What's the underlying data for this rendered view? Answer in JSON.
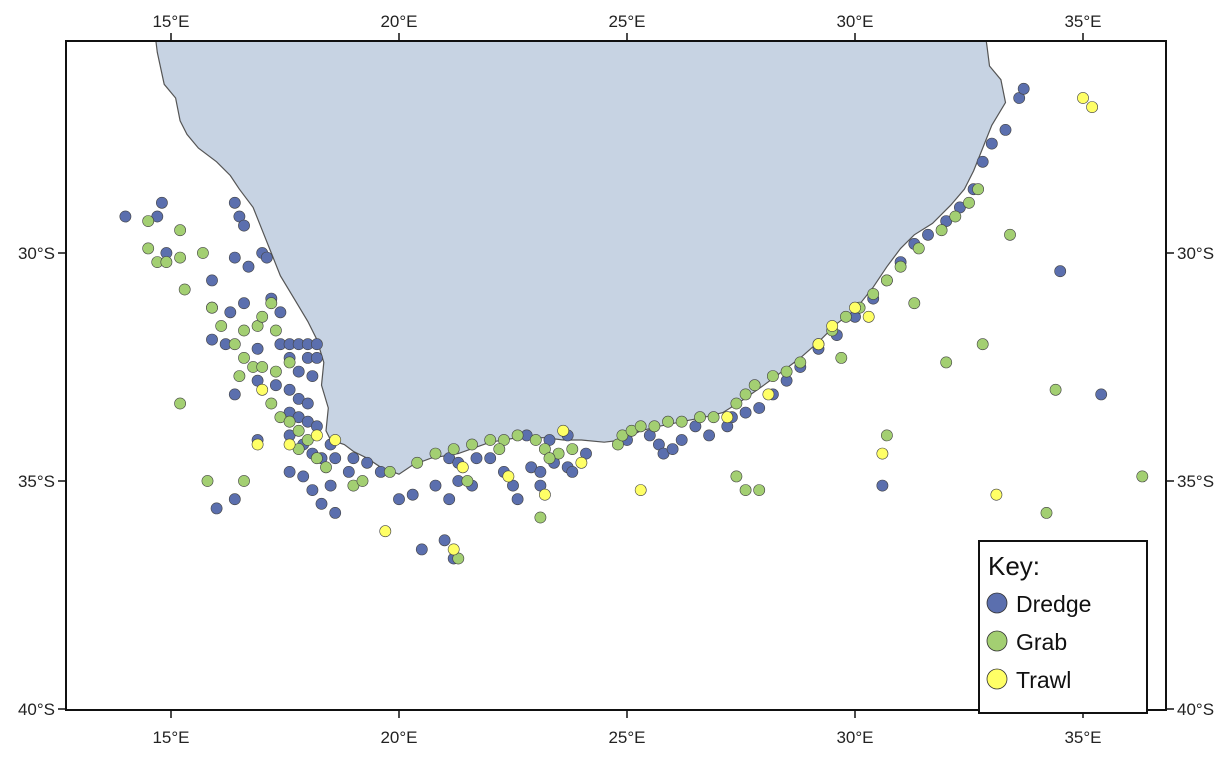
{
  "map": {
    "projection": "equirectangular",
    "lon_range": [
      12.8,
      36.6
    ],
    "lat_range": [
      -40.0,
      -24.8
    ],
    "x_ticks": [
      {
        "lon": 15,
        "label": "15°E"
      },
      {
        "lon": 20,
        "label": "20°E"
      },
      {
        "lon": 25,
        "label": "25°E"
      },
      {
        "lon": 30,
        "label": "30°E"
      },
      {
        "lon": 35,
        "label": "35°E"
      }
    ],
    "y_ticks": [
      {
        "lat": -30,
        "label": "30°S"
      },
      {
        "lat": -35,
        "label": "35°S"
      },
      {
        "lat": -40,
        "label": "40°S"
      }
    ],
    "land_color": "#c7d3e3",
    "coast_color": "#555555",
    "coastline": [
      [
        14.6,
        -24.8
      ],
      [
        14.7,
        -25.6
      ],
      [
        14.85,
        -26.3
      ],
      [
        15.1,
        -26.6
      ],
      [
        15.2,
        -27.1
      ],
      [
        15.35,
        -27.4
      ],
      [
        15.6,
        -27.7
      ],
      [
        16.0,
        -28.0
      ],
      [
        16.3,
        -28.3
      ],
      [
        16.5,
        -28.6
      ],
      [
        16.8,
        -29.0
      ],
      [
        17.0,
        -29.5
      ],
      [
        17.2,
        -30.0
      ],
      [
        17.4,
        -30.5
      ],
      [
        17.7,
        -31.0
      ],
      [
        18.0,
        -31.5
      ],
      [
        18.2,
        -31.9
      ],
      [
        18.35,
        -32.4
      ],
      [
        18.3,
        -32.9
      ],
      [
        18.45,
        -33.4
      ],
      [
        18.4,
        -33.9
      ],
      [
        18.5,
        -34.1
      ],
      [
        18.8,
        -34.2
      ],
      [
        19.0,
        -34.35
      ],
      [
        19.3,
        -34.5
      ],
      [
        19.6,
        -34.7
      ],
      [
        20.0,
        -34.85
      ],
      [
        20.3,
        -34.65
      ],
      [
        20.7,
        -34.5
      ],
      [
        21.3,
        -34.4
      ],
      [
        22.0,
        -34.15
      ],
      [
        22.6,
        -34.05
      ],
      [
        23.2,
        -34.05
      ],
      [
        23.6,
        -34.1
      ],
      [
        24.0,
        -34.1
      ],
      [
        24.5,
        -34.15
      ],
      [
        24.9,
        -34.1
      ],
      [
        25.3,
        -33.9
      ],
      [
        25.7,
        -33.8
      ],
      [
        26.2,
        -33.7
      ],
      [
        26.7,
        -33.6
      ],
      [
        27.1,
        -33.5
      ],
      [
        27.5,
        -33.25
      ],
      [
        28.0,
        -32.9
      ],
      [
        28.4,
        -32.6
      ],
      [
        28.8,
        -32.3
      ],
      [
        29.2,
        -31.95
      ],
      [
        29.6,
        -31.55
      ],
      [
        30.0,
        -31.25
      ],
      [
        30.4,
        -30.75
      ],
      [
        30.7,
        -30.3
      ],
      [
        31.0,
        -29.9
      ],
      [
        31.3,
        -29.6
      ],
      [
        31.7,
        -29.35
      ],
      [
        32.1,
        -28.95
      ],
      [
        32.4,
        -28.6
      ],
      [
        32.6,
        -28.2
      ],
      [
        32.8,
        -27.7
      ],
      [
        33.0,
        -27.2
      ],
      [
        33.3,
        -26.7
      ],
      [
        33.2,
        -26.2
      ],
      [
        32.95,
        -25.9
      ],
      [
        32.9,
        -25.5
      ],
      [
        32.8,
        -24.8
      ]
    ]
  },
  "legend": {
    "title": "Key:",
    "items": [
      {
        "label": "Dredge",
        "color": "#5b6fae"
      },
      {
        "label": "Grab",
        "color": "#a3cf72"
      },
      {
        "label": "Trawl",
        "color": "#ffff66"
      }
    ]
  },
  "points": {
    "dredge": [
      [
        14.0,
        -29.2
      ],
      [
        14.7,
        -29.2
      ],
      [
        14.8,
        -28.9
      ],
      [
        14.9,
        -30.0
      ],
      [
        16.4,
        -28.9
      ],
      [
        16.5,
        -29.2
      ],
      [
        16.6,
        -29.4
      ],
      [
        16.4,
        -30.1
      ],
      [
        16.7,
        -30.3
      ],
      [
        17.0,
        -30.0
      ],
      [
        17.1,
        -30.1
      ],
      [
        15.9,
        -30.6
      ],
      [
        16.6,
        -31.1
      ],
      [
        15.9,
        -31.2
      ],
      [
        17.2,
        -31.0
      ],
      [
        17.4,
        -31.3
      ],
      [
        16.3,
        -31.3
      ],
      [
        15.9,
        -31.9
      ],
      [
        16.2,
        -32.0
      ],
      [
        16.9,
        -32.1
      ],
      [
        17.4,
        -32.0
      ],
      [
        17.6,
        -32.0
      ],
      [
        17.8,
        -32.0
      ],
      [
        18.0,
        -32.0
      ],
      [
        18.2,
        -32.0
      ],
      [
        17.6,
        -32.3
      ],
      [
        18.0,
        -32.3
      ],
      [
        18.2,
        -32.3
      ],
      [
        17.8,
        -32.6
      ],
      [
        18.1,
        -32.7
      ],
      [
        16.9,
        -32.8
      ],
      [
        17.3,
        -32.9
      ],
      [
        17.6,
        -33.0
      ],
      [
        17.8,
        -33.2
      ],
      [
        18.0,
        -33.3
      ],
      [
        16.4,
        -33.1
      ],
      [
        17.6,
        -33.5
      ],
      [
        17.8,
        -33.6
      ],
      [
        18.0,
        -33.7
      ],
      [
        18.2,
        -33.8
      ],
      [
        16.9,
        -34.1
      ],
      [
        17.6,
        -34.0
      ],
      [
        17.9,
        -34.2
      ],
      [
        18.1,
        -34.4
      ],
      [
        18.3,
        -34.5
      ],
      [
        18.5,
        -34.2
      ],
      [
        18.6,
        -34.5
      ],
      [
        17.6,
        -34.8
      ],
      [
        17.9,
        -34.9
      ],
      [
        18.1,
        -35.2
      ],
      [
        18.5,
        -35.1
      ],
      [
        18.9,
        -34.8
      ],
      [
        16.4,
        -35.4
      ],
      [
        16.0,
        -35.6
      ],
      [
        18.3,
        -35.5
      ],
      [
        18.6,
        -35.7
      ],
      [
        19.0,
        -34.5
      ],
      [
        19.3,
        -34.6
      ],
      [
        19.6,
        -34.8
      ],
      [
        20.0,
        -35.4
      ],
      [
        20.3,
        -35.3
      ],
      [
        20.8,
        -35.1
      ],
      [
        21.3,
        -35.0
      ],
      [
        21.1,
        -35.4
      ],
      [
        21.6,
        -35.1
      ],
      [
        22.0,
        -34.5
      ],
      [
        22.3,
        -34.8
      ],
      [
        22.5,
        -35.1
      ],
      [
        22.6,
        -35.4
      ],
      [
        22.9,
        -34.7
      ],
      [
        23.1,
        -34.8
      ],
      [
        23.4,
        -34.6
      ],
      [
        23.7,
        -34.7
      ],
      [
        23.8,
        -34.8
      ],
      [
        24.1,
        -34.4
      ],
      [
        23.1,
        -35.1
      ],
      [
        20.5,
        -36.5
      ],
      [
        21.0,
        -36.3
      ],
      [
        21.2,
        -36.7
      ],
      [
        21.1,
        -34.5
      ],
      [
        21.3,
        -34.6
      ],
      [
        21.7,
        -34.5
      ],
      [
        22.8,
        -34.0
      ],
      [
        23.3,
        -34.1
      ],
      [
        23.7,
        -34.0
      ],
      [
        25.0,
        -34.1
      ],
      [
        25.5,
        -34.0
      ],
      [
        25.7,
        -34.2
      ],
      [
        25.8,
        -34.4
      ],
      [
        26.0,
        -34.3
      ],
      [
        26.2,
        -34.1
      ],
      [
        26.5,
        -33.8
      ],
      [
        26.8,
        -34.0
      ],
      [
        27.2,
        -33.8
      ],
      [
        27.6,
        -33.5
      ],
      [
        27.9,
        -33.4
      ],
      [
        28.2,
        -33.1
      ],
      [
        28.5,
        -32.8
      ],
      [
        28.8,
        -32.5
      ],
      [
        29.2,
        -32.1
      ],
      [
        29.6,
        -31.8
      ],
      [
        30.0,
        -31.4
      ],
      [
        30.4,
        -31.0
      ],
      [
        30.7,
        -30.6
      ],
      [
        31.0,
        -30.2
      ],
      [
        31.3,
        -29.8
      ],
      [
        31.6,
        -29.6
      ],
      [
        32.0,
        -29.3
      ],
      [
        32.3,
        -29.0
      ],
      [
        32.6,
        -28.6
      ],
      [
        32.8,
        -28.0
      ],
      [
        33.0,
        -27.6
      ],
      [
        33.3,
        -27.3
      ],
      [
        33.6,
        -26.6
      ],
      [
        33.7,
        -26.4
      ],
      [
        34.5,
        -30.4
      ],
      [
        35.4,
        -33.1
      ],
      [
        30.6,
        -35.1
      ],
      [
        27.3,
        -33.6
      ]
    ],
    "grab": [
      [
        14.5,
        -29.3
      ],
      [
        14.5,
        -29.9
      ],
      [
        14.7,
        -30.2
      ],
      [
        14.9,
        -30.2
      ],
      [
        15.2,
        -29.5
      ],
      [
        15.2,
        -30.1
      ],
      [
        15.7,
        -30.0
      ],
      [
        15.3,
        -30.8
      ],
      [
        15.9,
        -31.2
      ],
      [
        16.1,
        -31.6
      ],
      [
        16.6,
        -31.7
      ],
      [
        16.9,
        -31.6
      ],
      [
        17.0,
        -31.4
      ],
      [
        17.2,
        -31.1
      ],
      [
        17.3,
        -31.7
      ],
      [
        16.4,
        -32.0
      ],
      [
        16.6,
        -32.3
      ],
      [
        16.8,
        -32.5
      ],
      [
        16.5,
        -32.7
      ],
      [
        17.0,
        -32.5
      ],
      [
        17.3,
        -32.6
      ],
      [
        17.6,
        -32.4
      ],
      [
        17.2,
        -33.3
      ],
      [
        17.4,
        -33.6
      ],
      [
        17.6,
        -33.7
      ],
      [
        17.8,
        -33.9
      ],
      [
        18.0,
        -34.1
      ],
      [
        17.8,
        -34.3
      ],
      [
        18.2,
        -34.5
      ],
      [
        18.4,
        -34.7
      ],
      [
        15.2,
        -33.3
      ],
      [
        15.8,
        -35.0
      ],
      [
        16.6,
        -35.0
      ],
      [
        19.0,
        -35.1
      ],
      [
        19.8,
        -34.8
      ],
      [
        20.4,
        -34.6
      ],
      [
        20.8,
        -34.4
      ],
      [
        21.2,
        -34.3
      ],
      [
        21.6,
        -34.2
      ],
      [
        22.0,
        -34.1
      ],
      [
        22.3,
        -34.1
      ],
      [
        22.6,
        -34.0
      ],
      [
        23.0,
        -34.1
      ],
      [
        23.2,
        -34.3
      ],
      [
        23.5,
        -34.4
      ],
      [
        23.8,
        -34.3
      ],
      [
        24.8,
        -34.2
      ],
      [
        24.9,
        -34.0
      ],
      [
        25.1,
        -33.9
      ],
      [
        25.3,
        -33.8
      ],
      [
        25.6,
        -33.8
      ],
      [
        25.9,
        -33.7
      ],
      [
        26.2,
        -33.7
      ],
      [
        26.6,
        -33.6
      ],
      [
        26.9,
        -33.6
      ],
      [
        27.4,
        -33.3
      ],
      [
        27.6,
        -33.1
      ],
      [
        27.8,
        -32.9
      ],
      [
        28.2,
        -32.7
      ],
      [
        28.5,
        -32.6
      ],
      [
        28.8,
        -32.4
      ],
      [
        29.2,
        -32.0
      ],
      [
        29.5,
        -31.7
      ],
      [
        29.8,
        -31.4
      ],
      [
        30.1,
        -31.2
      ],
      [
        30.4,
        -30.9
      ],
      [
        30.7,
        -30.6
      ],
      [
        31.0,
        -30.3
      ],
      [
        31.4,
        -29.9
      ],
      [
        31.9,
        -29.5
      ],
      [
        32.2,
        -29.2
      ],
      [
        32.5,
        -28.9
      ],
      [
        32.7,
        -28.6
      ],
      [
        33.4,
        -29.6
      ],
      [
        31.3,
        -31.1
      ],
      [
        32.0,
        -32.4
      ],
      [
        32.8,
        -32.0
      ],
      [
        29.7,
        -32.3
      ],
      [
        30.7,
        -34.0
      ],
      [
        34.4,
        -33.0
      ],
      [
        36.3,
        -34.9
      ],
      [
        34.2,
        -35.7
      ],
      [
        27.4,
        -34.9
      ],
      [
        27.6,
        -35.2
      ],
      [
        27.9,
        -35.2
      ],
      [
        23.1,
        -35.8
      ],
      [
        21.3,
        -36.7
      ],
      [
        22.2,
        -34.3
      ],
      [
        23.3,
        -34.5
      ],
      [
        21.5,
        -35.0
      ],
      [
        19.2,
        -35.0
      ]
    ],
    "trawl": [
      [
        17.0,
        -33.0
      ],
      [
        16.9,
        -34.2
      ],
      [
        17.6,
        -34.2
      ],
      [
        18.2,
        -34.0
      ],
      [
        19.7,
        -36.1
      ],
      [
        21.2,
        -36.5
      ],
      [
        21.4,
        -34.7
      ],
      [
        22.4,
        -34.9
      ],
      [
        23.2,
        -35.3
      ],
      [
        23.6,
        -33.9
      ],
      [
        24.0,
        -34.6
      ],
      [
        25.3,
        -35.2
      ],
      [
        27.2,
        -33.6
      ],
      [
        28.1,
        -33.1
      ],
      [
        29.2,
        -32.0
      ],
      [
        29.5,
        -31.6
      ],
      [
        30.0,
        -31.2
      ],
      [
        30.3,
        -31.4
      ],
      [
        30.6,
        -34.4
      ],
      [
        33.1,
        -35.3
      ],
      [
        35.0,
        -26.6
      ],
      [
        35.2,
        -26.8
      ],
      [
        18.6,
        -34.1
      ]
    ]
  }
}
